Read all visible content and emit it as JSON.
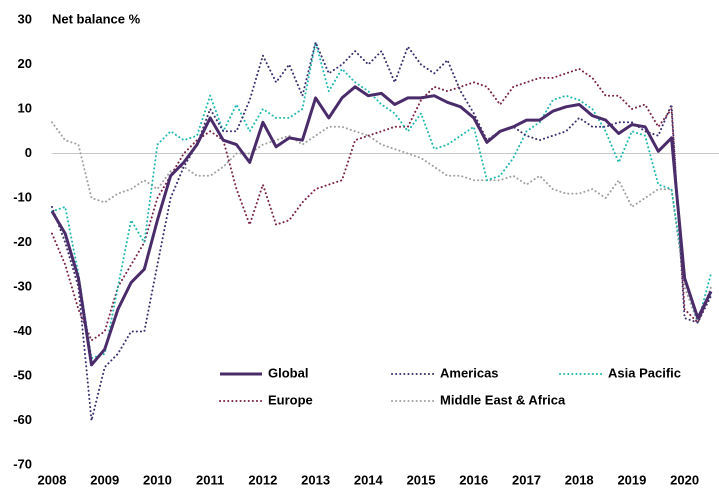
{
  "chart_data": {
    "type": "line",
    "y_label": "Net balance %",
    "x": [
      2008,
      2008.25,
      2008.5,
      2008.75,
      2009,
      2009.25,
      2009.5,
      2009.75,
      2010,
      2010.25,
      2010.5,
      2010.75,
      2011,
      2011.25,
      2011.5,
      2011.75,
      2012,
      2012.25,
      2012.5,
      2012.75,
      2013,
      2013.25,
      2013.5,
      2013.75,
      2014,
      2014.25,
      2014.5,
      2014.75,
      2015,
      2015.25,
      2015.5,
      2015.75,
      2016,
      2016.25,
      2016.5,
      2016.75,
      2017,
      2017.25,
      2017.5,
      2017.75,
      2018,
      2018.25,
      2018.5,
      2018.75,
      2019,
      2019.25,
      2019.5,
      2019.75,
      2020,
      2020.25,
      2020.5
    ],
    "series": [
      {
        "name": "Global",
        "color": "#4b2c6b",
        "style": "solid",
        "values": [
          -13,
          -18,
          -28,
          -47.5,
          -44,
          -35,
          -29,
          -26,
          -15,
          -5,
          -2,
          2,
          8,
          3,
          2,
          -2,
          7,
          1.5,
          3.5,
          3,
          12.5,
          8,
          12.5,
          15,
          13,
          13.5,
          11,
          12.5,
          12.5,
          13,
          11.5,
          10.5,
          8,
          2.5,
          5,
          6,
          7.5,
          7.5,
          9.5,
          10.5,
          11,
          8.5,
          7.5,
          4.5,
          6.5,
          6,
          0.5,
          3.5,
          -28,
          -37,
          -31
        ]
      },
      {
        "name": "Americas",
        "color": "#3b2f6e",
        "style": "dotted",
        "values": [
          -12,
          -20,
          -30,
          -60,
          -48,
          -45,
          -40,
          -40,
          -25,
          -10,
          -3,
          2,
          10,
          5,
          5,
          12,
          22,
          16,
          20,
          13,
          25,
          18,
          20,
          23,
          20,
          23,
          16,
          24,
          20,
          18,
          21,
          14,
          9,
          3,
          5,
          6,
          4,
          3,
          4,
          5,
          8,
          6,
          6,
          7,
          7,
          5,
          4,
          11,
          -37,
          -38,
          -32
        ]
      },
      {
        "name": "Asia Pacific",
        "color": "#1fb8b0",
        "style": "dotted",
        "values": [
          -13,
          -12,
          -27,
          -46,
          -45,
          -30,
          -15,
          -20,
          2,
          5,
          3,
          4,
          13,
          5,
          11,
          5,
          10,
          8,
          8,
          10,
          25,
          14,
          19,
          16,
          14,
          11,
          9,
          5,
          9,
          1,
          2,
          4,
          6,
          -6,
          -5,
          -1,
          5,
          7,
          12,
          13,
          12,
          10,
          5,
          -2,
          5,
          4,
          -7,
          -8,
          -28,
          -38,
          -27
        ]
      },
      {
        "name": "Europe",
        "color": "#7a2346",
        "style": "dotted",
        "values": [
          -18,
          -25,
          -35,
          -42,
          -40,
          -30,
          -25,
          -20,
          -10,
          -5,
          0,
          3,
          5,
          3,
          -8,
          -16,
          -7,
          -16,
          -15,
          -11,
          -8,
          -7,
          -6,
          3,
          4,
          5,
          6,
          6,
          12,
          15,
          14,
          15,
          16,
          15,
          11,
          15,
          16,
          17,
          17,
          18,
          19,
          17,
          13,
          13,
          10,
          11,
          6,
          10,
          -35,
          -38,
          -31
        ]
      },
      {
        "name": "Middle East & Africa",
        "color": "#a0a0a0",
        "style": "dotted",
        "values": [
          7,
          3,
          2,
          -10,
          -11,
          -9,
          -8,
          -6,
          -8,
          -4,
          -3,
          -5,
          -5,
          -3,
          0,
          0,
          2,
          3,
          4,
          2,
          4,
          6,
          6,
          5,
          4,
          2,
          1,
          0,
          -1,
          -3,
          -5,
          -5,
          -6,
          -6,
          -6,
          -5,
          -7,
          -5,
          -8,
          -9,
          -9,
          -8,
          -10,
          -6,
          -12,
          -10,
          -8,
          -8,
          -30,
          -38,
          -30
        ]
      }
    ],
    "xlim": [
      2008,
      2020.5
    ],
    "xticks": [
      2008,
      2009,
      2010,
      2011,
      2012,
      2013,
      2014,
      2015,
      2016,
      2017,
      2018,
      2019,
      2020
    ],
    "ylim": [
      -70,
      30
    ],
    "yticks": [
      -70,
      -60,
      -50,
      -40,
      -30,
      -20,
      -10,
      0,
      10,
      20,
      30
    ]
  }
}
